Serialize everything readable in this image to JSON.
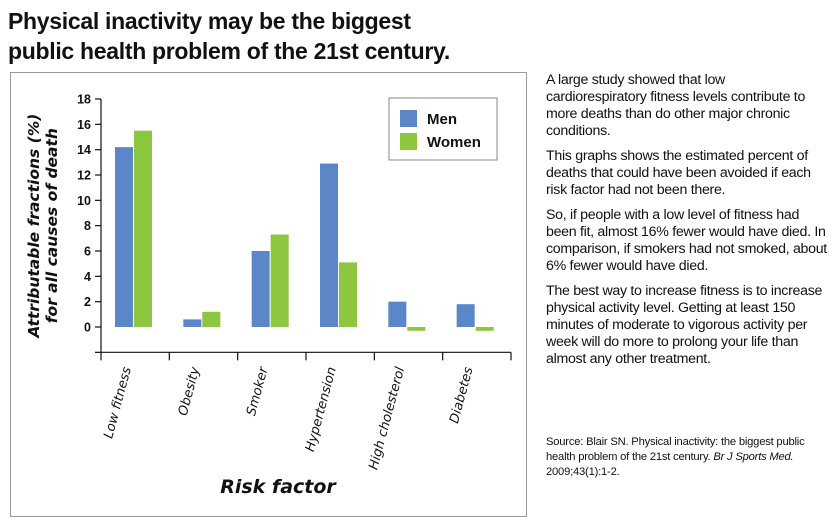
{
  "heading": {
    "line1": "Physical inactivity may be the biggest",
    "line2": "public health problem of the 21st century."
  },
  "description": {
    "p1": "A large study showed that low cardiorespiratory fitness levels contribute to more deaths than do other major chronic conditions.",
    "p2": "This graphs shows the estimated percent of deaths that could have been avoided if each risk factor had not been there.",
    "p3": "So, if people with a low level of fitness had been fit, almost 16% fewer would have died. In comparison, if smokers had not smoked, about 6% fewer would have died.",
    "p4": "The best way to increase fitness is to increase physical activity level. Getting at least 150 minutes of moderate to vigorous activity per week will do more to prolong your life than almost any other treatment."
  },
  "source": {
    "prefix": "Source: Blair SN. Physical inactivity: the biggest public health problem of the 21st century.",
    "journal": "Br J Sports Med.",
    "citation": "2009;43(1):1-2."
  },
  "chart_data": {
    "type": "bar",
    "categories": [
      "Low fitness",
      "Obesity",
      "Smoker",
      "Hypertension",
      "High cholesterol",
      "Diabetes"
    ],
    "series": [
      {
        "name": "Men",
        "color": "#5b86c7",
        "values": [
          14.2,
          0.6,
          6.0,
          12.9,
          2.0,
          1.8
        ]
      },
      {
        "name": "Women",
        "color": "#8dc63f",
        "values": [
          15.5,
          1.2,
          7.3,
          5.1,
          -0.3,
          -0.3
        ]
      }
    ],
    "title": "",
    "xlabel": "Risk factor",
    "ylabel_line1": "Attributable fractions (%)",
    "ylabel_line2": "for all causes of death",
    "yticks": [
      0,
      2,
      4,
      6,
      8,
      10,
      12,
      14,
      16,
      18
    ],
    "ylim": [
      -2,
      18
    ],
    "grid": false,
    "legend_position": "top-right"
  }
}
